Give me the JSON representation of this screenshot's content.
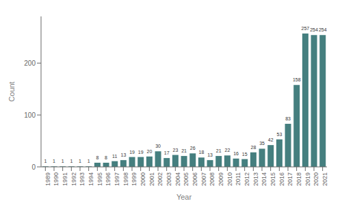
{
  "chart_data": {
    "type": "bar",
    "categories": [
      "1989",
      "1990",
      "1991",
      "1992",
      "1993",
      "1994",
      "1995",
      "1996",
      "1997",
      "1998",
      "1999",
      "2000",
      "2001",
      "2002",
      "2003",
      "2004",
      "2005",
      "2006",
      "2007",
      "2008",
      "2009",
      "2010",
      "2011",
      "2012",
      "2013",
      "2014",
      "2015",
      "2016",
      "2017",
      "2018",
      "2019",
      "2020",
      "2021"
    ],
    "values": [
      1,
      1,
      1,
      1,
      1,
      1,
      8,
      8,
      11,
      13,
      19,
      19,
      20,
      30,
      17,
      23,
      21,
      26,
      18,
      13,
      21,
      22,
      16,
      15,
      28,
      35,
      42,
      53,
      83,
      158,
      257,
      254,
      254
    ],
    "color": "#457f7f",
    "xlabel": "Year",
    "ylabel": "Count",
    "ylim": [
      0,
      290
    ],
    "yticks": [
      0,
      100,
      200
    ],
    "grid": false,
    "data_labels": true
  }
}
